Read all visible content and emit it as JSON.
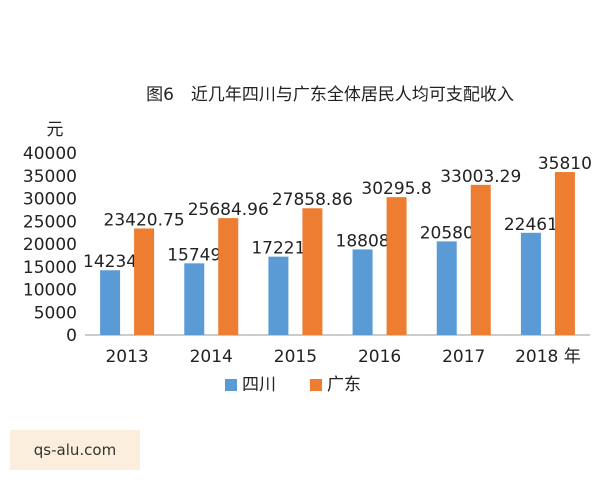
{
  "chart_data": {
    "type": "bar",
    "title": "图6　近几年四川与广东全体居民人均可支配收入",
    "ylabel": "元",
    "ylim": [
      0,
      40000
    ],
    "yticks": [
      0,
      5000,
      10000,
      15000,
      20000,
      25000,
      30000,
      35000,
      40000
    ],
    "categories": [
      "2013",
      "2014",
      "2015",
      "2016",
      "2017",
      "2018 年"
    ],
    "series": [
      {
        "name": "四川",
        "values": [
          14234,
          15749,
          17221,
          18808,
          20580,
          22461
        ],
        "labels": [
          "14234",
          "15749",
          "17221",
          "18808",
          "20580",
          "22461"
        ],
        "color": "#5b9bd5"
      },
      {
        "name": "广东",
        "values": [
          23420.75,
          25684.96,
          27858.86,
          30295.8,
          33003.29,
          35810
        ],
        "labels": [
          "23420.75",
          "25684.96",
          "27858.86",
          "30295.8",
          "33003.29",
          "35810"
        ],
        "color": "#ed7d31"
      }
    ],
    "grid": false,
    "legend": "bottom-center"
  },
  "watermark": {
    "text": "qs-alu.com"
  }
}
